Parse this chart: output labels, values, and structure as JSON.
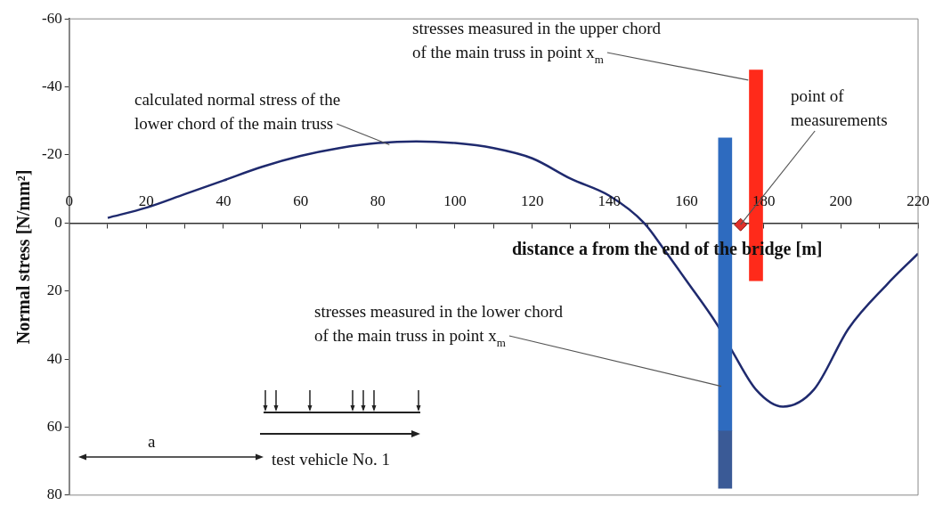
{
  "chart_data": {
    "type": "line",
    "xlabel": "distance a from the end of the bridge [m]",
    "ylabel": "Normal stress [N/mm²]",
    "xlim": [
      0,
      220
    ],
    "ylim": [
      80,
      -60
    ],
    "xticks": [
      0,
      {
        "value": 10,
        "label": null
      },
      20,
      {
        "value": 30,
        "label": null
      },
      40,
      {
        "value": 50,
        "label": null
      },
      60,
      {
        "value": 70,
        "label": null
      },
      80,
      {
        "value": 90,
        "label": null
      },
      100,
      {
        "value": 110,
        "label": null
      },
      120,
      {
        "value": 130,
        "label": null
      },
      140,
      {
        "value": 150,
        "label": null
      },
      160,
      {
        "value": 170,
        "label": null
      },
      180,
      {
        "value": 190,
        "label": null
      },
      200,
      {
        "value": 210,
        "label": null
      },
      220
    ],
    "yticks": [
      -60,
      -40,
      -20,
      0,
      20,
      40,
      60,
      80
    ],
    "grid": false,
    "legend": false,
    "series": [
      {
        "color": "#1f2a6e",
        "x": [
          10,
          20,
          30,
          40,
          50,
          60,
          70,
          80,
          90,
          100,
          110,
          120,
          130,
          140,
          149,
          154,
          160,
          168,
          172,
          178,
          185,
          193,
          202,
          212,
          220
        ],
        "values": [
          -1.5,
          -4.5,
          -8.5,
          -12.5,
          -16.5,
          -19.7,
          -22,
          -23.5,
          -24,
          -23.5,
          -22,
          -19,
          -13,
          -8,
          0,
          7.5,
          17,
          30,
          38,
          49,
          54,
          49,
          31,
          18,
          9
        ]
      },
      {
        "type": "bar",
        "color": "#2e6bbf",
        "x": [
          170
        ],
        "base": [
          -25
        ],
        "values": [
          86
        ]
      },
      {
        "type": "bar",
        "color": "#3a5a96",
        "x": [
          170
        ],
        "base": [
          61
        ],
        "values": [
          17
        ]
      },
      {
        "type": "bar",
        "color": "#ff2a1a",
        "x": [
          178
        ],
        "base": [
          -45
        ],
        "values": [
          62
        ]
      },
      {
        "type": "scatter",
        "color": "#e0302a",
        "marker": "diamond",
        "x": [
          174
        ],
        "values": [
          0.5
        ]
      }
    ],
    "annotations": [
      {
        "text": "calculated normal stress of the\nlower chord of the main truss",
        "x": 83,
        "y": -23
      },
      {
        "text": "stresses measured in the upper chord\nof the main truss in point x$_{m}$",
        "x": 176,
        "y": -42
      },
      {
        "text": "point of\nmeasurements",
        "x": 174,
        "y": 0.5
      },
      {
        "text": "stresses measured in the lower chord\nof the main truss in point x$_{m}$",
        "x": 169,
        "y": 48
      },
      "a",
      "test vehicle No. 1"
    ]
  }
}
